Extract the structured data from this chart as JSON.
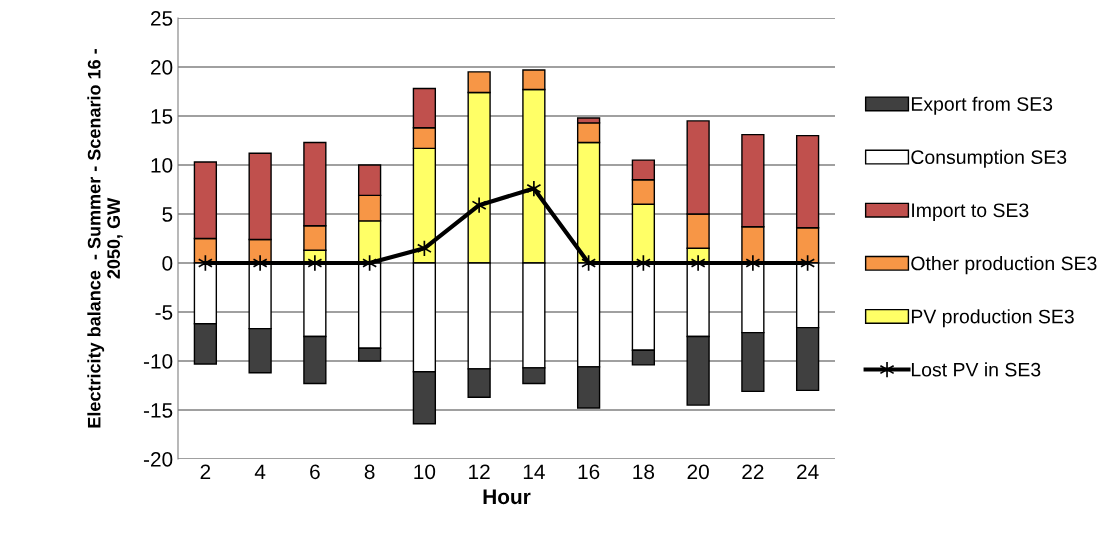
{
  "chart_data": {
    "type": "bar",
    "stacked": true,
    "xlabel": "Hour",
    "ylabel": "Electricity balance  - Summer - Scenario 16 -\n2050, GW",
    "categories": [
      "2",
      "4",
      "6",
      "8",
      "10",
      "12",
      "14",
      "16",
      "18",
      "20",
      "22",
      "24"
    ],
    "series": [
      {
        "name": "PV production SE3",
        "color": "#ffff66",
        "values": [
          null,
          null,
          1.3,
          4.3,
          11.7,
          17.4,
          17.7,
          12.3,
          6.0,
          1.5,
          null,
          null
        ]
      },
      {
        "name": "Other production SE3",
        "color": "#f79646",
        "values": [
          2.5,
          2.4,
          2.5,
          2.6,
          2.1,
          2.1,
          2.0,
          2.0,
          2.5,
          3.5,
          3.7,
          3.6
        ]
      },
      {
        "name": "Import to SE3",
        "color": "#c0504d",
        "values": [
          7.8,
          8.8,
          8.5,
          3.1,
          4.0,
          null,
          null,
          0.5,
          2.0,
          9.5,
          9.4,
          9.4
        ]
      },
      {
        "name": "Consumption SE3",
        "color": "#ffffff",
        "values": [
          -6.2,
          -6.7,
          -7.5,
          -8.7,
          -11.1,
          -10.8,
          -10.7,
          -10.6,
          -8.9,
          -7.5,
          -7.1,
          -6.6
        ]
      },
      {
        "name": "Export from SE3",
        "color": "#404040",
        "values": [
          -4.1,
          -4.5,
          -4.8,
          -1.3,
          -5.3,
          -2.9,
          -1.6,
          -4.2,
          -1.5,
          -7.0,
          -6.0,
          -6.4
        ]
      },
      {
        "name": "Lost PV in SE3",
        "type": "line",
        "color": "#000000",
        "marker": "cross",
        "values": [
          0,
          0,
          0,
          0,
          1.5,
          5.9,
          7.6,
          0,
          0,
          0,
          0,
          0
        ]
      }
    ],
    "ylim": [
      -20,
      25
    ],
    "yticks": [
      -20,
      -15,
      -10,
      -5,
      0,
      5,
      10,
      15,
      20,
      25
    ],
    "grid": "y",
    "legend": "right"
  }
}
